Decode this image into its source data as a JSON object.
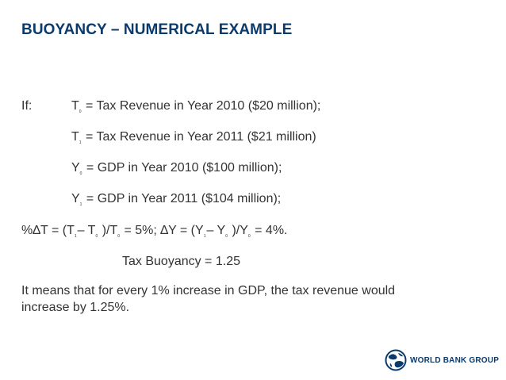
{
  "title": "BUOYANCY – NUMERICAL EXAMPLE",
  "if_label": "If:",
  "definitions": [
    {
      "var": "T",
      "sub": "0",
      "text": "= Tax Revenue in Year 2010 ($20 million);"
    },
    {
      "var": "T",
      "sub": "1",
      "text": "= Tax Revenue in Year 2011 ($21 million)"
    },
    {
      "var": "Y",
      "sub": "0",
      "text": "= GDP in Year 2010 ($100 million);"
    },
    {
      "var": "Y",
      "sub": "1",
      "text": "= GDP in Year 2011 ($104 million);"
    }
  ],
  "formula": {
    "p1": "%∆T = (T",
    "s1": "1",
    "p2": "– T",
    "s2": "0",
    "p3": ")/T",
    "s3": "0",
    "p4": "= 5%; ∆Y = (Y",
    "s4": "1",
    "p5": "– Y",
    "s5": "0",
    "p6": ")/Y",
    "s6": "0",
    "p7": "= 4%."
  },
  "result": "Tax Buoyancy = 1.25",
  "conclusion": {
    "line1": "It means that for every 1% increase in GDP, the tax revenue would",
    "line2": "increase by 1.25%."
  },
  "logo": {
    "text": "WORLD BANK GROUP",
    "icon": "globe-icon"
  },
  "colors": {
    "title": "#0b3a6b",
    "body_text": "#333333",
    "logo": "#0b3a6b"
  }
}
